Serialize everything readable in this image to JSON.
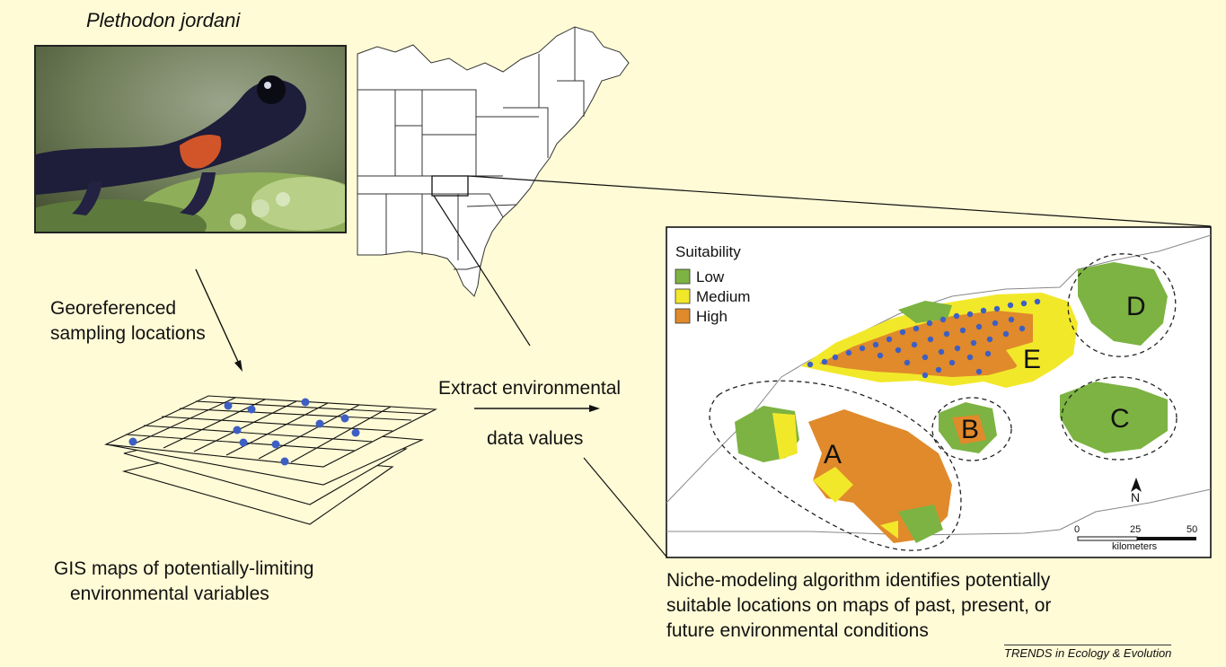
{
  "species_title": "Plethodon jordani",
  "steps": {
    "georeferenced": [
      "Georeferenced",
      "sampling locations"
    ],
    "gis_caption": [
      "GIS maps of potentially-limiting",
      "environmental variables"
    ],
    "extract": [
      "Extract environmental",
      "data values"
    ],
    "niche_caption": [
      "Niche-modeling algorithm identifies potentially",
      "suitable locations on maps of past, present, or",
      "future environmental conditions"
    ]
  },
  "legend": {
    "title": "Suitability",
    "items": [
      {
        "label": "Low",
        "color": "#7cb342"
      },
      {
        "label": "Medium",
        "color": "#f2e82a"
      },
      {
        "label": "High",
        "color": "#e08a2b"
      }
    ]
  },
  "regions": [
    "A",
    "B",
    "C",
    "D",
    "E"
  ],
  "scale_bar": {
    "ticks": [
      "0",
      "25",
      "50"
    ],
    "unit": "kilometers"
  },
  "north_label": "N",
  "source": "TRENDS in Ecology & Evolution",
  "colors": {
    "background": "#fffbd6",
    "point": "#3d5fc4",
    "low": "#7cb342",
    "medium": "#f2e82a",
    "high": "#e08a2b"
  }
}
